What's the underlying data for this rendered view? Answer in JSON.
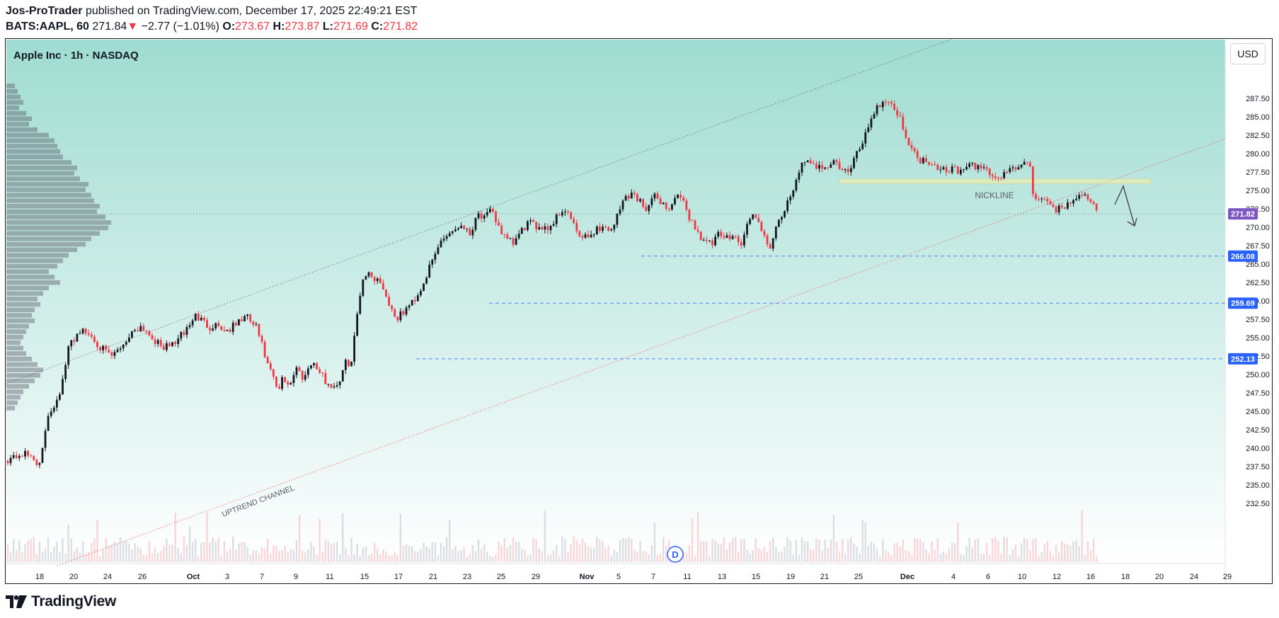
{
  "header": {
    "publisher": "Jos-ProTrader",
    "published_text": "published on TradingView.com, December 17, 2025 22:49:21 EST",
    "symbol_interval": "BATS:AAPL, 60",
    "last_price": "271.84",
    "change_arrow": "▼",
    "change": "−2.77 (−1.01%)",
    "o_label": "O:",
    "o_value": "273.67",
    "h_label": "H:",
    "h_value": "273.87",
    "l_label": "L:",
    "l_value": "271.69",
    "c_label": "C:",
    "c_value": "271.82"
  },
  "chart_title": "Apple Inc · 1h · NASDAQ",
  "currency_button": "USD",
  "brand": {
    "name": "TradingView",
    "logo_icon": "tradingview-logo-icon"
  },
  "colors": {
    "up": "#131722",
    "down": "#f23645",
    "gradient_top": "#9fdcd1",
    "gradient_bottom": "#ffffff",
    "price_badge": "#7e57c2",
    "level_badge": "#2962ff",
    "channel_upper": "#131722",
    "channel_lower": "#f23645",
    "neckline_zone": "#f5f0a8"
  },
  "chart_data": {
    "type": "candlestick",
    "title": "Apple Inc · 1h · NASDAQ",
    "ylim": [
      231.5,
      290.0
    ],
    "y_ticks": [
      "287.50",
      "285.00",
      "282.50",
      "280.00",
      "277.50",
      "275.00",
      "272.50",
      "270.00",
      "267.50",
      "265.00",
      "262.50",
      "260.00",
      "257.50",
      "255.00",
      "252.50",
      "250.00",
      "247.50",
      "245.00",
      "242.50",
      "240.00",
      "237.50",
      "235.00",
      "232.50"
    ],
    "x_ticks": [
      "18",
      "20",
      "24",
      "26",
      "Oct",
      "3",
      "7",
      "9",
      "11",
      "15",
      "17",
      "21",
      "23",
      "25",
      "29",
      "Nov",
      "5",
      "7",
      "11",
      "13",
      "15",
      "19",
      "21",
      "25",
      "Dec",
      "4",
      "6",
      "10",
      "12",
      "16",
      "18",
      "20",
      "24",
      "29"
    ],
    "last_price": {
      "label": "271.82",
      "value": 271.82
    },
    "levels": [
      {
        "label": "266.08",
        "value": 266.08
      },
      {
        "label": "259.69",
        "value": 259.69
      },
      {
        "label": "252.13",
        "value": 252.13
      }
    ],
    "annotations": [
      {
        "text": "NICKLINE",
        "type": "zone",
        "y_range": [
          275.9,
          276.6
        ]
      },
      {
        "text": "UPTREND CHANNEL",
        "type": "channel-label"
      }
    ],
    "event_marker": {
      "label": "D"
    },
    "close_path": [
      [
        0,
        238.5
      ],
      [
        4,
        239.2
      ],
      [
        7,
        238.8
      ],
      [
        9,
        237.5
      ],
      [
        11,
        244.5
      ],
      [
        13,
        246.0
      ],
      [
        15,
        248.5
      ],
      [
        17,
        254.0
      ],
      [
        20,
        256.0
      ],
      [
        23,
        255.3
      ],
      [
        27,
        253.0
      ],
      [
        29,
        252.4
      ],
      [
        31,
        253.6
      ],
      [
        33,
        254.8
      ],
      [
        35,
        256.1
      ],
      [
        37,
        256.6
      ],
      [
        40,
        255.1
      ],
      [
        42,
        253.9
      ],
      [
        44,
        253.7
      ],
      [
        46,
        254.3
      ],
      [
        48,
        255.2
      ],
      [
        50,
        256.5
      ],
      [
        52,
        258.0
      ],
      [
        54,
        257.2
      ],
      [
        56,
        256.5
      ],
      [
        58,
        256.9
      ],
      [
        60,
        255.9
      ],
      [
        62,
        256.3
      ],
      [
        64,
        257.2
      ],
      [
        66,
        257.9
      ],
      [
        69,
        256.3
      ],
      [
        72,
        251.2
      ],
      [
        74,
        249.0
      ],
      [
        75,
        247.2
      ],
      [
        76,
        249.6
      ],
      [
        78,
        248.6
      ],
      [
        80,
        250.9
      ],
      [
        82,
        249.5
      ],
      [
        84,
        251.8
      ],
      [
        86,
        250.6
      ],
      [
        88,
        249.1
      ],
      [
        90,
        248.3
      ],
      [
        92,
        249.2
      ],
      [
        94,
        252.1
      ],
      [
        95,
        251.0
      ],
      [
        96,
        254.9
      ],
      [
        97,
        259.0
      ],
      [
        98,
        262.5
      ],
      [
        99,
        263.8
      ],
      [
        101,
        263.3
      ],
      [
        103,
        262.8
      ],
      [
        104,
        261.8
      ],
      [
        106,
        259.0
      ],
      [
        108,
        257.6
      ],
      [
        110,
        258.7
      ],
      [
        112,
        259.8
      ],
      [
        114,
        261.2
      ],
      [
        116,
        263.5
      ],
      [
        118,
        265.8
      ],
      [
        120,
        268.2
      ],
      [
        122,
        269.2
      ],
      [
        124,
        269.8
      ],
      [
        126,
        270.5
      ],
      [
        128,
        269.0
      ],
      [
        130,
        272.0
      ],
      [
        132,
        271.2
      ],
      [
        134,
        272.2
      ],
      [
        136,
        270.2
      ],
      [
        138,
        268.2
      ],
      [
        140,
        267.8
      ],
      [
        142,
        269.2
      ],
      [
        144,
        270.6
      ],
      [
        146,
        270.1
      ],
      [
        148,
        270.2
      ],
      [
        150,
        269.9
      ],
      [
        152,
        271.4
      ],
      [
        154,
        272.6
      ],
      [
        156,
        271.2
      ],
      [
        157,
        269.8
      ],
      [
        159,
        268.4
      ],
      [
        161,
        268.7
      ],
      [
        163,
        269.8
      ],
      [
        165,
        270.0
      ],
      [
        167,
        269.6
      ],
      [
        169,
        271.7
      ],
      [
        171,
        274.2
      ],
      [
        173,
        274.6
      ],
      [
        175,
        273.6
      ],
      [
        177,
        272.6
      ],
      [
        179,
        274.1
      ],
      [
        181,
        273.6
      ],
      [
        183,
        272.2
      ],
      [
        185,
        274.3
      ],
      [
        187,
        273.4
      ],
      [
        189,
        271.2
      ],
      [
        191,
        269.4
      ],
      [
        193,
        268.2
      ],
      [
        195,
        267.6
      ],
      [
        197,
        269.0
      ],
      [
        199,
        268.4
      ],
      [
        201,
        269.4
      ],
      [
        203,
        267.3
      ],
      [
        205,
        270.6
      ],
      [
        207,
        272.0
      ],
      [
        209,
        268.8
      ],
      [
        211,
        267.3
      ],
      [
        213,
        269.8
      ],
      [
        215,
        272.2
      ],
      [
        217,
        274.0
      ],
      [
        219,
        277.8
      ],
      [
        221,
        278.8
      ],
      [
        223,
        278.2
      ],
      [
        225,
        278.5
      ],
      [
        227,
        278.3
      ],
      [
        229,
        278.9
      ],
      [
        231,
        277.9
      ],
      [
        233,
        277.3
      ],
      [
        235,
        279.8
      ],
      [
        237,
        281.9
      ],
      [
        239,
        284.7
      ],
      [
        241,
        286.6
      ],
      [
        242,
        286.8
      ],
      [
        244,
        287.4
      ],
      [
        246,
        285.7
      ],
      [
        248,
        283.8
      ],
      [
        250,
        280.8
      ],
      [
        252,
        279.4
      ],
      [
        254,
        279.0
      ],
      [
        256,
        278.9
      ],
      [
        258,
        278.2
      ],
      [
        260,
        277.8
      ],
      [
        262,
        278.1
      ],
      [
        264,
        277.4
      ],
      [
        266,
        278.4
      ],
      [
        268,
        278.1
      ],
      [
        270,
        278.3
      ],
      [
        272,
        277.4
      ],
      [
        274,
        276.4
      ],
      [
        276,
        277.3
      ],
      [
        278,
        278.2
      ],
      [
        280,
        277.9
      ],
      [
        282,
        278.6
      ],
      [
        283,
        279.2
      ],
      [
        284,
        274.7
      ],
      [
        285,
        274.1
      ],
      [
        287,
        273.4
      ],
      [
        289,
        272.9
      ],
      [
        291,
        272.4
      ],
      [
        293,
        272.9
      ],
      [
        295,
        273.6
      ],
      [
        297,
        274.9
      ],
      [
        299,
        273.6
      ],
      [
        301,
        272.9
      ],
      [
        302,
        272.2
      ]
    ],
    "volume_profile": [
      0.06,
      0.08,
      0.1,
      0.12,
      0.09,
      0.14,
      0.18,
      0.16,
      0.22,
      0.3,
      0.34,
      0.36,
      0.38,
      0.4,
      0.46,
      0.5,
      0.48,
      0.52,
      0.58,
      0.56,
      0.6,
      0.62,
      0.66,
      0.64,
      0.7,
      0.74,
      0.72,
      0.66,
      0.6,
      0.56,
      0.5,
      0.44,
      0.4,
      0.36,
      0.3,
      0.34,
      0.38,
      0.3,
      0.26,
      0.22,
      0.24,
      0.2,
      0.18,
      0.2,
      0.16,
      0.14,
      0.12,
      0.1,
      0.12,
      0.14,
      0.18,
      0.22,
      0.26,
      0.24,
      0.2,
      0.16,
      0.12,
      0.1,
      0.08,
      0.06
    ]
  }
}
